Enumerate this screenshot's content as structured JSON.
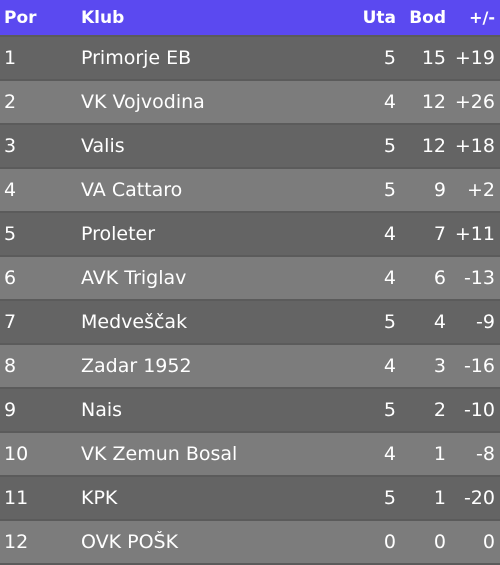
{
  "header": {
    "pos": "Por",
    "club": "Klub",
    "played": "Uta",
    "points": "Bod",
    "diff": "+/-"
  },
  "rows": [
    {
      "pos": "1",
      "club": "Primorje EB",
      "played": "5",
      "points": "15",
      "diff": "+19"
    },
    {
      "pos": "2",
      "club": "VK Vojvodina",
      "played": "4",
      "points": "12",
      "diff": "+26"
    },
    {
      "pos": "3",
      "club": "Valis",
      "played": "5",
      "points": "12",
      "diff": "+18"
    },
    {
      "pos": "4",
      "club": "VA Cattaro",
      "played": "5",
      "points": "9",
      "diff": "+2"
    },
    {
      "pos": "5",
      "club": "Proleter",
      "played": "4",
      "points": "7",
      "diff": "+11"
    },
    {
      "pos": "6",
      "club": "AVK Triglav",
      "played": "4",
      "points": "6",
      "diff": "-13"
    },
    {
      "pos": "7",
      "club": "Medveščak",
      "played": "5",
      "points": "4",
      "diff": "-9"
    },
    {
      "pos": "8",
      "club": "Zadar 1952",
      "played": "4",
      "points": "3",
      "diff": "-16"
    },
    {
      "pos": "9",
      "club": "Nais",
      "played": "5",
      "points": "2",
      "diff": "-10"
    },
    {
      "pos": "10",
      "club": "VK Zemun Bosal",
      "played": "4",
      "points": "1",
      "diff": "-8"
    },
    {
      "pos": "11",
      "club": "KPK",
      "played": "5",
      "points": "1",
      "diff": "-20"
    },
    {
      "pos": "12",
      "club": "OVK POŠK",
      "played": "0",
      "points": "0",
      "diff": "0"
    }
  ],
  "colors": {
    "header_bg": "#5b49f0",
    "row_dark": "#646464",
    "row_light": "#7c7c7c",
    "text": "#ffffff"
  }
}
